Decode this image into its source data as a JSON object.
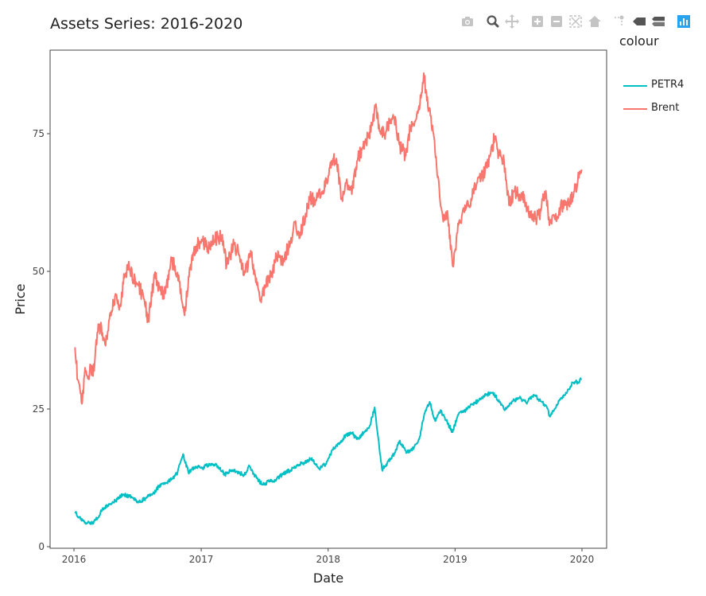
{
  "title": "Assets Series: 2016-2020",
  "modebar": {
    "icons": [
      "camera-icon",
      "zoom-icon",
      "pan-icon",
      "zoom-in-icon",
      "zoom-out-icon",
      "autoscale-icon",
      "reset-axes-icon",
      "spike-lines-icon",
      "hover-closest-icon",
      "hover-compare-icon",
      "plotly-logo-icon"
    ]
  },
  "legend": {
    "title": "colour",
    "items": [
      {
        "label": "PETR4",
        "color": "#00bfc4"
      },
      {
        "label": "Brent",
        "color": "#f8766d"
      }
    ]
  },
  "chart_data": {
    "type": "line",
    "title": "Assets Series: 2016-2020",
    "xlabel": "Date",
    "ylabel": "Price",
    "xlim": [
      "2016-01-01",
      "2020-01-01"
    ],
    "ylim": [
      0,
      90
    ],
    "x_ticks": [
      "2016",
      "2017",
      "2018",
      "2019",
      "2020"
    ],
    "y_ticks": [
      "0",
      "25",
      "50",
      "75"
    ],
    "grid": false,
    "legend_position": "right",
    "series": [
      {
        "name": "PETR4",
        "color": "#00bfc4",
        "points": [
          [
            "2016-01-04",
            6.3
          ],
          [
            "2016-01-20",
            5.0
          ],
          [
            "2016-02-01",
            4.3
          ],
          [
            "2016-02-20",
            4.2
          ],
          [
            "2016-03-10",
            5.2
          ],
          [
            "2016-03-25",
            7.0
          ],
          [
            "2016-04-15",
            7.8
          ],
          [
            "2016-05-05",
            8.6
          ],
          [
            "2016-05-20",
            9.5
          ],
          [
            "2016-06-15",
            9.0
          ],
          [
            "2016-07-05",
            8.0
          ],
          [
            "2016-07-25",
            8.8
          ],
          [
            "2016-08-15",
            9.6
          ],
          [
            "2016-09-01",
            10.9
          ],
          [
            "2016-09-20",
            11.6
          ],
          [
            "2016-10-10",
            12.3
          ],
          [
            "2016-10-25",
            13.5
          ],
          [
            "2016-11-10",
            16.8
          ],
          [
            "2016-11-25",
            13.5
          ],
          [
            "2016-12-15",
            14.5
          ],
          [
            "2017-01-05",
            14.3
          ],
          [
            "2017-01-25",
            15.0
          ],
          [
            "2017-02-15",
            14.7
          ],
          [
            "2017-03-10",
            13.1
          ],
          [
            "2017-03-25",
            13.9
          ],
          [
            "2017-04-15",
            13.6
          ],
          [
            "2017-05-05",
            13.0
          ],
          [
            "2017-05-20",
            14.6
          ],
          [
            "2017-06-05",
            12.8
          ],
          [
            "2017-06-25",
            11.3
          ],
          [
            "2017-07-15",
            11.8
          ],
          [
            "2017-08-05",
            12.2
          ],
          [
            "2017-08-25",
            13.3
          ],
          [
            "2017-09-15",
            13.9
          ],
          [
            "2017-10-05",
            14.9
          ],
          [
            "2017-10-25",
            15.3
          ],
          [
            "2017-11-15",
            16.1
          ],
          [
            "2017-12-05",
            14.2
          ],
          [
            "2017-12-25",
            15.0
          ],
          [
            "2018-01-15",
            17.6
          ],
          [
            "2018-02-05",
            19.0
          ],
          [
            "2018-02-20",
            20.2
          ],
          [
            "2018-03-10",
            20.7
          ],
          [
            "2018-03-25",
            19.5
          ],
          [
            "2018-04-15",
            20.8
          ],
          [
            "2018-05-01",
            22.0
          ],
          [
            "2018-05-15",
            25.3
          ],
          [
            "2018-05-25",
            19.8
          ],
          [
            "2018-06-05",
            14.0
          ],
          [
            "2018-06-20",
            15.2
          ],
          [
            "2018-07-10",
            16.8
          ],
          [
            "2018-07-25",
            19.2
          ],
          [
            "2018-08-15",
            17.1
          ],
          [
            "2018-09-05",
            18.0
          ],
          [
            "2018-09-20",
            19.5
          ],
          [
            "2018-10-05",
            24.2
          ],
          [
            "2018-10-20",
            26.3
          ],
          [
            "2018-11-05",
            22.8
          ],
          [
            "2018-11-20",
            24.8
          ],
          [
            "2018-12-10",
            22.5
          ],
          [
            "2018-12-25",
            20.8
          ],
          [
            "2019-01-10",
            24.0
          ],
          [
            "2019-02-01",
            24.8
          ],
          [
            "2019-02-20",
            25.9
          ],
          [
            "2019-03-10",
            26.5
          ],
          [
            "2019-04-01",
            27.6
          ],
          [
            "2019-04-20",
            28.0
          ],
          [
            "2019-05-10",
            26.3
          ],
          [
            "2019-05-25",
            24.8
          ],
          [
            "2019-06-15",
            26.4
          ],
          [
            "2019-07-05",
            27.0
          ],
          [
            "2019-07-25",
            26.1
          ],
          [
            "2019-08-15",
            27.6
          ],
          [
            "2019-09-05",
            26.4
          ],
          [
            "2019-09-20",
            25.6
          ],
          [
            "2019-10-01",
            23.6
          ],
          [
            "2019-10-20",
            25.8
          ],
          [
            "2019-11-05",
            26.9
          ],
          [
            "2019-11-20",
            28.2
          ],
          [
            "2019-12-05",
            29.8
          ],
          [
            "2019-12-20",
            29.9
          ],
          [
            "2019-12-31",
            30.4
          ]
        ]
      },
      {
        "name": "Brent",
        "color": "#f8766d",
        "points": [
          [
            "2016-01-04",
            36.2
          ],
          [
            "2016-01-12",
            30.3
          ],
          [
            "2016-01-20",
            27.8
          ],
          [
            "2016-01-25",
            26.2
          ],
          [
            "2016-02-02",
            32.5
          ],
          [
            "2016-02-10",
            30.5
          ],
          [
            "2016-02-18",
            33.0
          ],
          [
            "2016-02-25",
            31.0
          ],
          [
            "2016-03-08",
            38.9
          ],
          [
            "2016-03-20",
            40.0
          ],
          [
            "2016-04-01",
            36.5
          ],
          [
            "2016-04-15",
            42.5
          ],
          [
            "2016-04-28",
            45.5
          ],
          [
            "2016-05-10",
            43.0
          ],
          [
            "2016-05-25",
            48.8
          ],
          [
            "2016-06-08",
            50.7
          ],
          [
            "2016-06-20",
            48.5
          ],
          [
            "2016-07-05",
            47.5
          ],
          [
            "2016-07-20",
            45.0
          ],
          [
            "2016-08-02",
            41.0
          ],
          [
            "2016-08-20",
            49.5
          ],
          [
            "2016-09-05",
            46.5
          ],
          [
            "2016-09-20",
            46.0
          ],
          [
            "2016-10-08",
            51.9
          ],
          [
            "2016-10-25",
            49.8
          ],
          [
            "2016-11-05",
            45.0
          ],
          [
            "2016-11-14",
            42.0
          ],
          [
            "2016-11-30",
            50.5
          ],
          [
            "2016-12-15",
            54.5
          ],
          [
            "2017-01-05",
            55.5
          ],
          [
            "2017-01-20",
            54.3
          ],
          [
            "2017-02-10",
            55.8
          ],
          [
            "2017-03-01",
            56.3
          ],
          [
            "2017-03-15",
            51.0
          ],
          [
            "2017-04-05",
            55.0
          ],
          [
            "2017-04-20",
            53.0
          ],
          [
            "2017-05-05",
            49.5
          ],
          [
            "2017-05-25",
            53.0
          ],
          [
            "2017-06-10",
            47.5
          ],
          [
            "2017-06-21",
            44.8
          ],
          [
            "2017-07-05",
            47.5
          ],
          [
            "2017-07-20",
            49.0
          ],
          [
            "2017-08-05",
            52.5
          ],
          [
            "2017-08-25",
            52.0
          ],
          [
            "2017-09-15",
            55.5
          ],
          [
            "2017-09-28",
            59.0
          ],
          [
            "2017-10-10",
            56.0
          ],
          [
            "2017-10-28",
            60.5
          ],
          [
            "2017-11-10",
            63.5
          ],
          [
            "2017-11-25",
            62.5
          ],
          [
            "2017-12-15",
            64.5
          ],
          [
            "2017-12-28",
            66.5
          ],
          [
            "2018-01-12",
            70.0
          ],
          [
            "2018-01-25",
            70.5
          ],
          [
            "2018-02-10",
            63.0
          ],
          [
            "2018-02-25",
            66.0
          ],
          [
            "2018-03-10",
            64.0
          ],
          [
            "2018-03-25",
            70.0
          ],
          [
            "2018-04-10",
            72.5
          ],
          [
            "2018-04-25",
            74.5
          ],
          [
            "2018-05-08",
            76.5
          ],
          [
            "2018-05-17",
            79.8
          ],
          [
            "2018-05-30",
            75.5
          ],
          [
            "2018-06-15",
            75.0
          ],
          [
            "2018-06-28",
            77.5
          ],
          [
            "2018-07-10",
            78.0
          ],
          [
            "2018-07-25",
            73.0
          ],
          [
            "2018-08-12",
            71.0
          ],
          [
            "2018-08-25",
            76.0
          ],
          [
            "2018-09-10",
            77.5
          ],
          [
            "2018-09-25",
            81.5
          ],
          [
            "2018-10-03",
            86.0
          ],
          [
            "2018-10-12",
            81.0
          ],
          [
            "2018-10-28",
            76.5
          ],
          [
            "2018-11-12",
            67.0
          ],
          [
            "2018-11-28",
            59.0
          ],
          [
            "2018-12-10",
            61.0
          ],
          [
            "2018-12-25",
            51.0
          ],
          [
            "2019-01-08",
            57.0
          ],
          [
            "2019-01-25",
            61.5
          ],
          [
            "2019-02-10",
            62.0
          ],
          [
            "2019-02-25",
            65.5
          ],
          [
            "2019-03-12",
            67.0
          ],
          [
            "2019-03-28",
            68.0
          ],
          [
            "2019-04-12",
            71.0
          ],
          [
            "2019-04-25",
            74.5
          ],
          [
            "2019-05-08",
            71.0
          ],
          [
            "2019-05-22",
            70.0
          ],
          [
            "2019-06-05",
            62.0
          ],
          [
            "2019-06-20",
            64.5
          ],
          [
            "2019-07-05",
            64.0
          ],
          [
            "2019-07-20",
            63.0
          ],
          [
            "2019-08-05",
            60.5
          ],
          [
            "2019-08-20",
            59.5
          ],
          [
            "2019-09-05",
            61.0
          ],
          [
            "2019-09-16",
            64.5
          ],
          [
            "2019-10-01",
            59.0
          ],
          [
            "2019-10-15",
            59.5
          ],
          [
            "2019-10-28",
            61.5
          ],
          [
            "2019-11-12",
            62.0
          ],
          [
            "2019-11-28",
            63.0
          ],
          [
            "2019-12-10",
            64.5
          ],
          [
            "2019-12-20",
            66.5
          ],
          [
            "2019-12-31",
            68.5
          ]
        ]
      }
    ]
  }
}
